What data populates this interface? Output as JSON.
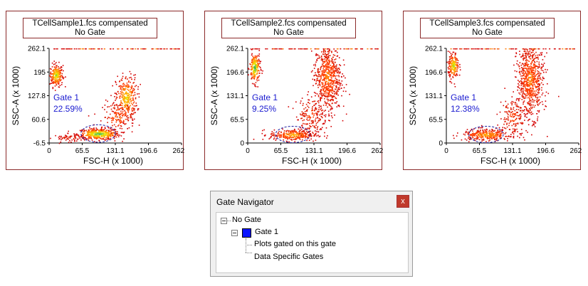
{
  "plots": [
    {
      "title_line1": "TCellSample1.fcs compensated",
      "title_line2": "No Gate",
      "y_ticks": [
        "262.1",
        "195",
        "127.8",
        "60.6",
        "-6.5"
      ],
      "x_ticks": [
        "0",
        "65.5",
        "131.1",
        "196.6",
        "262.1"
      ],
      "x_label": "FSC-H (x 1000)",
      "y_label": "SSC-A (x 1000)",
      "gate_name": "Gate 1",
      "gate_pct": "22.59%"
    },
    {
      "title_line1": "TCellSample2.fcs compensated",
      "title_line2": "No Gate",
      "y_ticks": [
        "262.1",
        "196.6",
        "131.1",
        "65.5",
        "0"
      ],
      "x_ticks": [
        "0",
        "65.5",
        "131.1",
        "196.6",
        "262.1"
      ],
      "x_label": "FSC-H (x 1000)",
      "y_label": "SSC-A (x 1000)",
      "gate_name": "Gate 1",
      "gate_pct": "9.25%"
    },
    {
      "title_line1": "TCellSample3.fcs compensated",
      "title_line2": "No Gate",
      "y_ticks": [
        "262.1",
        "196.6",
        "131.1",
        "65.5",
        "0"
      ],
      "x_ticks": [
        "0",
        "65.5",
        "131.1",
        "196.6",
        "262.1"
      ],
      "x_label": "FSC-H (x 1000)",
      "y_label": "SSC-A (x 1000)",
      "gate_name": "Gate 1",
      "gate_pct": "12.38%"
    }
  ],
  "navigator": {
    "title": "Gate Navigator",
    "close_glyph": "x",
    "root_label": "No Gate",
    "gate_label": "Gate 1",
    "child1": "Plots gated on this gate",
    "child2": "Data Specific Gates"
  },
  "colors": {
    "panel_border": "#8b2a2a",
    "gate_ellipse": "#1a1aa0",
    "gate_text": "#1a1ad0",
    "gate_swatch": "#0a14ff",
    "close_button": "#c0392b"
  }
}
